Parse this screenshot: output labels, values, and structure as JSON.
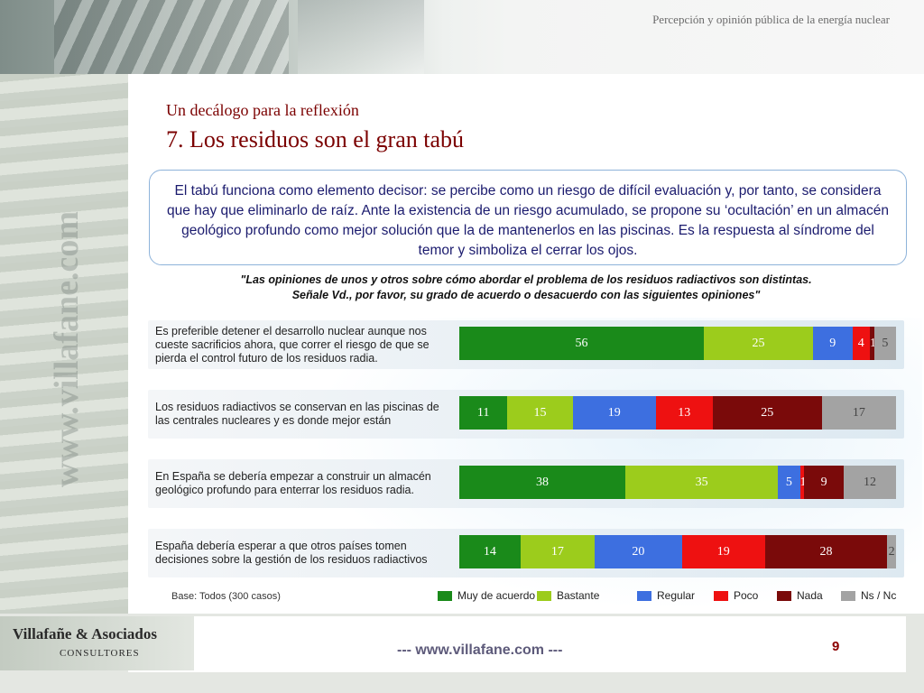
{
  "header": {
    "title": "Percepción y opinión pública de la energía nuclear"
  },
  "watermark": "www.villafane.com",
  "slide": {
    "subtitle": "Un decálogo para la reflexión",
    "title": "7. Los residuos son el gran tabú",
    "callout": "El tabú funciona como elemento decisor: se percibe como un riesgo de difícil evaluación y, por tanto, se considera que hay que eliminarlo de raíz. Ante la existencia de un riesgo acumulado, se propone su ‘ocultación’ en un almacén geológico profundo como mejor solución que la de mantenerlos en las piscinas. Es la respuesta al síndrome del temor y simboliza el cerrar los ojos.",
    "quote_line1": "\"Las opiniones de unos y otros sobre cómo abordar el problema de los residuos radiactivos son distintas.",
    "quote_line2": "Señale Vd., por favor, su grado de acuerdo o desacuerdo con las siguientes opiniones\"",
    "base_note": "Base: Todos (300 casos)"
  },
  "chart_data": {
    "type": "bar",
    "orientation": "horizontal-stacked-100",
    "categories": [
      "Es preferible detener el desarrollo nuclear aunque nos cueste sacrificios ahora, que correr el riesgo de que se pierda el control futuro de los residuos radia.",
      "Los residuos radiactivos se conservan en las piscinas de las centrales nucleares y es donde mejor están",
      "En España se debería empezar a construir un almacén geológico profundo para enterrar los residuos radia.",
      "España debería esperar a que otros países tomen decisiones sobre la gestión de los residuos radiactivos"
    ],
    "series": [
      {
        "name": "Muy de acuerdo",
        "color": "#1a8a1a",
        "label_color": "#ffffff",
        "values": [
          56,
          11,
          38,
          14
        ]
      },
      {
        "name": "Bastante",
        "color": "#9ccc1c",
        "label_color": "#ffffff",
        "values": [
          25,
          15,
          35,
          17
        ]
      },
      {
        "name": "Regular",
        "color": "#3d6fe0",
        "label_color": "#ffffff",
        "values": [
          9,
          19,
          5,
          20
        ]
      },
      {
        "name": "Poco",
        "color": "#ee1111",
        "label_color": "#ffffff",
        "values": [
          4,
          13,
          1,
          19
        ]
      },
      {
        "name": "Nada",
        "color": "#7a0a0a",
        "label_color": "#ffffff",
        "values": [
          1,
          25,
          9,
          28
        ]
      },
      {
        "name": "Ns / Nc",
        "color": "#a3a3a3",
        "label_color": "#444444",
        "values": [
          5,
          17,
          12,
          2
        ]
      }
    ]
  },
  "footer": {
    "brand_name": "Villafañe & Asociados",
    "brand_sub": "CONSULTORES",
    "url": "---  www.villafane.com  ---",
    "page": "9"
  }
}
